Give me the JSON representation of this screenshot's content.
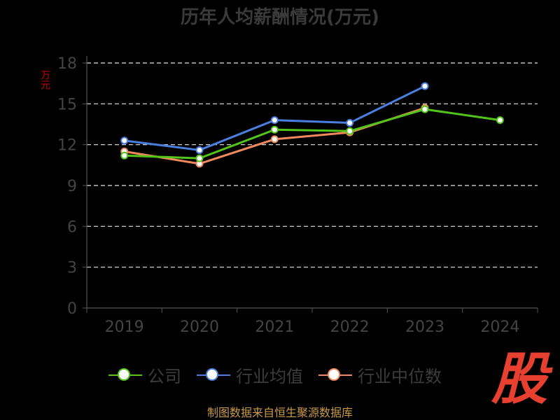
{
  "title": "历年人均薪酬情况(万元)",
  "ylabel": "万元",
  "source": "制图数据来自恒生聚源数据库",
  "logo_text": "股",
  "chart_data": {
    "type": "line",
    "title": "历年人均薪酬情况(万元)",
    "ylabel": "万元",
    "ylim": [
      0,
      18
    ],
    "yticks": [
      0,
      3,
      6,
      9,
      12,
      15,
      18
    ],
    "grid": true,
    "legend_position": "bottom",
    "categories": [
      "2019",
      "2020",
      "2021",
      "2022",
      "2023",
      "2024"
    ],
    "series": [
      {
        "name": "公司",
        "color": "#52c41a",
        "values": [
          11.2,
          11.0,
          13.1,
          13.0,
          14.6,
          13.8
        ]
      },
      {
        "name": "行业均值",
        "color": "#4a7fe0",
        "values": [
          12.3,
          11.6,
          13.8,
          13.6,
          16.3,
          null
        ]
      },
      {
        "name": "行业中位数",
        "color": "#f08a5d",
        "values": [
          11.5,
          10.6,
          12.4,
          12.9,
          14.7,
          null
        ]
      }
    ]
  }
}
